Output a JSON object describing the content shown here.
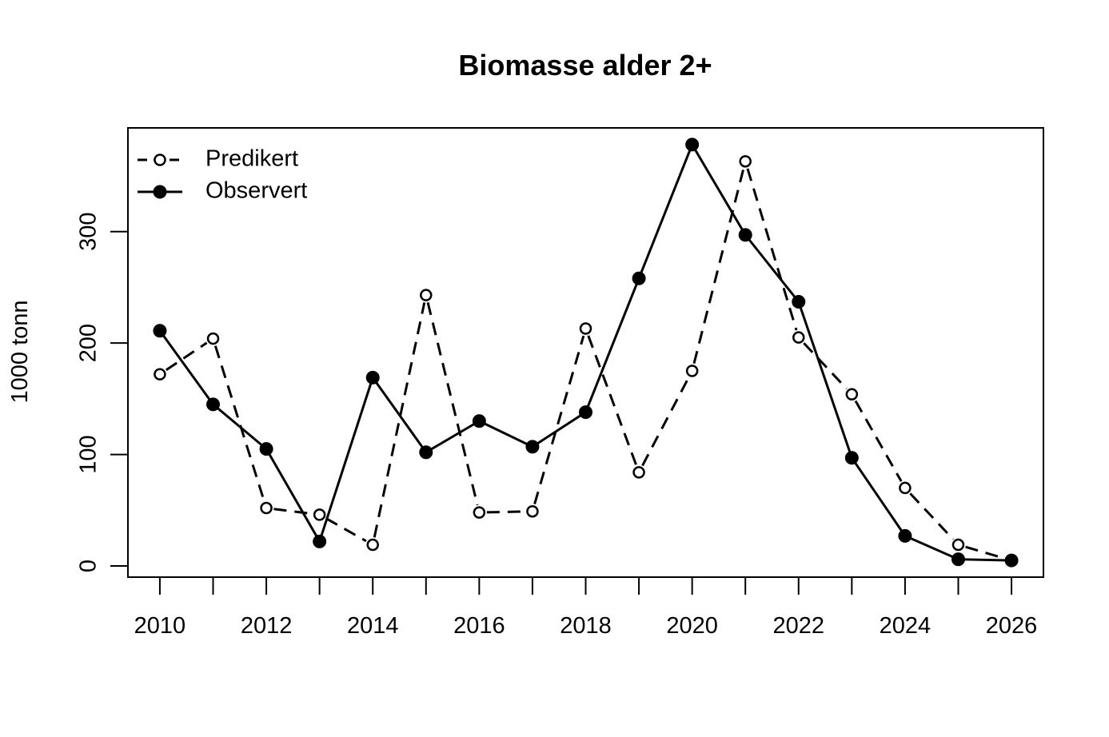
{
  "chart_data": {
    "type": "line",
    "title": "Biomasse alder 2+",
    "xlabel": "",
    "ylabel": "1000 tonn",
    "x": [
      2010,
      2011,
      2012,
      2013,
      2014,
      2015,
      2016,
      2017,
      2018,
      2019,
      2020,
      2021,
      2022,
      2023,
      2024,
      2025,
      2026
    ],
    "x_ticks": [
      "2010",
      "2012",
      "2014",
      "2016",
      "2018",
      "2020",
      "2022",
      "2024",
      "2026"
    ],
    "y_ticks": [
      "0",
      "100",
      "200",
      "300"
    ],
    "xlim": [
      2009.4,
      2026.6
    ],
    "ylim": [
      -10,
      393
    ],
    "grid": false,
    "legend_position": "top-left",
    "series": [
      {
        "name": "Predikert",
        "style": "dashed-open-circle",
        "values": [
          172,
          204,
          52,
          46,
          19,
          243,
          48,
          49,
          213,
          84,
          175,
          363,
          205,
          154,
          70,
          19,
          5
        ]
      },
      {
        "name": "Observert",
        "style": "solid-filled-circle",
        "values": [
          211,
          145,
          105,
          22,
          169,
          102,
          130,
          107,
          138,
          258,
          378,
          297,
          237,
          97,
          27,
          6,
          5
        ]
      }
    ],
    "colors": {
      "lines": "#000000",
      "background": "#ffffff"
    }
  }
}
